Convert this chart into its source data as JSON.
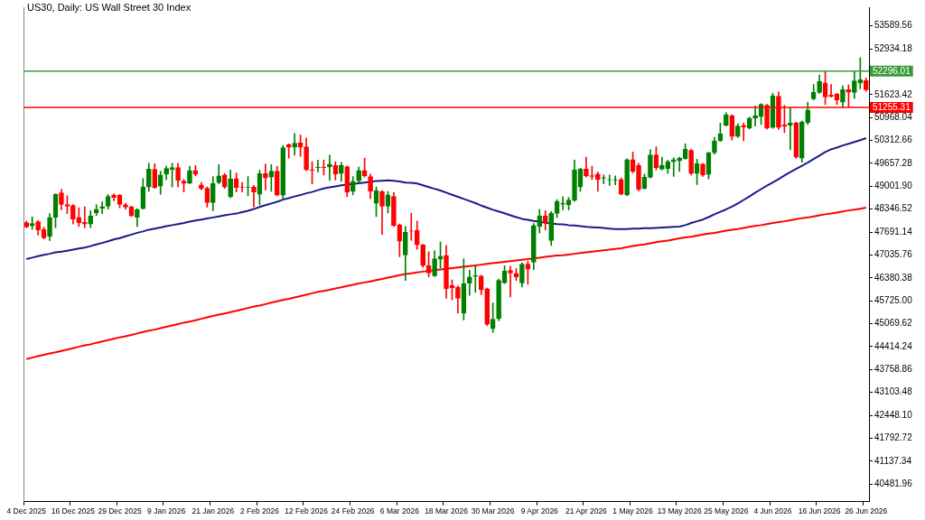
{
  "chart_data": {
    "type": "candlestick",
    "title": "US30, Daily: US Wall Street 30 Index",
    "categories": [
      "4 Dec 2025",
      null,
      null,
      null,
      null,
      null,
      null,
      null,
      "16 Dec 2025",
      null,
      null,
      null,
      null,
      null,
      null,
      null,
      "29 Dec 2025",
      null,
      null,
      null,
      null,
      null,
      null,
      null,
      "9 Jan 2026",
      null,
      null,
      null,
      null,
      null,
      null,
      null,
      "21 Jan 2026",
      null,
      null,
      null,
      null,
      null,
      null,
      null,
      "2 Feb 2026",
      null,
      null,
      null,
      null,
      null,
      null,
      null,
      "12 Feb 2026",
      null,
      null,
      null,
      null,
      null,
      null,
      null,
      "24 Feb 2026",
      null,
      null,
      null,
      null,
      null,
      null,
      null,
      "6 Mar 2026",
      null,
      null,
      null,
      null,
      null,
      null,
      null,
      "18 Mar 2026",
      null,
      null,
      null,
      null,
      null,
      null,
      null,
      "30 Mar 2026",
      null,
      null,
      null,
      null,
      null,
      null,
      null,
      "9 Apr 2026",
      null,
      null,
      null,
      null,
      null,
      null,
      null,
      "21 Apr 2026",
      null,
      null,
      null,
      null,
      null,
      null,
      null,
      "1 May 2026",
      null,
      null,
      null,
      null,
      null,
      null,
      null,
      "13 May 2026",
      null,
      null,
      null,
      null,
      null,
      null,
      null,
      "25 May 2026",
      null,
      null,
      null,
      null,
      null,
      null,
      null,
      "4 Jun 2026",
      null,
      null,
      null,
      null,
      null,
      null,
      null,
      "16 Jun 2026",
      null,
      null,
      null,
      null,
      null,
      null,
      null,
      "26 Jun 2026"
    ],
    "ohlc": [
      [
        47963,
        48006,
        47819,
        47836
      ],
      [
        47870,
        48125,
        47768,
        47938
      ],
      [
        47989,
        48023,
        47606,
        47751
      ],
      [
        47768,
        47835,
        47496,
        47530
      ],
      [
        47564,
        48218,
        47453,
        48108
      ],
      [
        48108,
        48788,
        47819,
        48771
      ],
      [
        48813,
        48915,
        48329,
        48482
      ],
      [
        48482,
        48728,
        48218,
        48431
      ],
      [
        48456,
        48482,
        47921,
        48065
      ],
      [
        48108,
        48388,
        47853,
        47963
      ],
      [
        47972,
        48414,
        47819,
        47921
      ],
      [
        47921,
        48303,
        47819,
        48159
      ],
      [
        48244,
        48473,
        48159,
        48346
      ],
      [
        48371,
        48558,
        48218,
        48422
      ],
      [
        48431,
        48771,
        48346,
        48711
      ],
      [
        48745,
        48788,
        48584,
        48686
      ],
      [
        48745,
        48771,
        48388,
        48482
      ],
      [
        48473,
        48516,
        48346,
        48405
      ],
      [
        48405,
        48431,
        48133,
        48159
      ],
      [
        48116,
        48371,
        47853,
        48329
      ],
      [
        48363,
        49221,
        48346,
        48983
      ],
      [
        48983,
        49663,
        48856,
        49493
      ],
      [
        49485,
        49646,
        48941,
        48958
      ],
      [
        49009,
        49434,
        48771,
        49323
      ],
      [
        49349,
        49578,
        49196,
        49510
      ],
      [
        49485,
        49663,
        48983,
        49536
      ],
      [
        49536,
        49663,
        48983,
        49170
      ],
      [
        49153,
        49196,
        48839,
        49085
      ],
      [
        49094,
        49578,
        49068,
        49451
      ],
      [
        49451,
        49595,
        49298,
        49349
      ],
      [
        49043,
        49111,
        48898,
        48941
      ],
      [
        48941,
        48983,
        48405,
        48533
      ],
      [
        48533,
        49281,
        48303,
        49085
      ],
      [
        49111,
        49621,
        49068,
        49298
      ],
      [
        49323,
        49366,
        48941,
        48983
      ],
      [
        48703,
        49468,
        48669,
        49213
      ],
      [
        49221,
        49383,
        48839,
        48966
      ],
      [
        48983,
        49111,
        48839,
        48975
      ],
      [
        48975,
        49281,
        48728,
        48983
      ],
      [
        48983,
        49026,
        48414,
        48839
      ],
      [
        48771,
        49468,
        48473,
        49366
      ],
      [
        49366,
        49638,
        48898,
        49238
      ],
      [
        49264,
        49621,
        48856,
        49434
      ],
      [
        49434,
        49578,
        48728,
        48745
      ],
      [
        48745,
        50173,
        48643,
        50105
      ],
      [
        50199,
        50216,
        49808,
        50114
      ],
      [
        50114,
        50513,
        49893,
        50233
      ],
      [
        50241,
        50471,
        49859,
        50114
      ],
      [
        50131,
        50386,
        49451,
        49468
      ],
      [
        49476,
        49706,
        49068,
        49459
      ],
      [
        49536,
        49748,
        49408,
        49553
      ],
      [
        49553,
        49748,
        49323,
        49536
      ],
      [
        49553,
        49893,
        49170,
        49638
      ],
      [
        49604,
        49706,
        49179,
        49349
      ],
      [
        49366,
        49689,
        49145,
        49604
      ],
      [
        49561,
        49578,
        48703,
        48830
      ],
      [
        48856,
        49281,
        48754,
        49145
      ],
      [
        49153,
        49553,
        49094,
        49451
      ],
      [
        49451,
        49808,
        49264,
        49306
      ],
      [
        49281,
        49349,
        48643,
        48856
      ],
      [
        48516,
        48983,
        48133,
        48873
      ],
      [
        48856,
        48881,
        47623,
        48431
      ],
      [
        48431,
        48856,
        48235,
        48754
      ],
      [
        48711,
        48830,
        47853,
        47878
      ],
      [
        47895,
        47921,
        46986,
        47428
      ],
      [
        47037,
        47853,
        46306,
        47683
      ],
      [
        47725,
        48235,
        47453,
        47717
      ],
      [
        47734,
        48005,
        47198,
        47326
      ],
      [
        47326,
        47343,
        46688,
        46731
      ],
      [
        46731,
        47130,
        46408,
        46518
      ],
      [
        46442,
        47156,
        46416,
        46926
      ],
      [
        46918,
        47411,
        46663,
        47003
      ],
      [
        47028,
        47309,
        45796,
        46076
      ],
      [
        46161,
        46323,
        45753,
        46093
      ],
      [
        46110,
        46152,
        45371,
        45796
      ],
      [
        45371,
        46926,
        45175,
        46221
      ],
      [
        46221,
        46603,
        45881,
        46408
      ],
      [
        46425,
        46731,
        45966,
        46450
      ],
      [
        46433,
        46459,
        45898,
        46034
      ],
      [
        46068,
        46093,
        45014,
        45056
      ],
      [
        44929,
        45668,
        44818,
        45201
      ],
      [
        45218,
        46348,
        45158,
        46306
      ],
      [
        46238,
        46731,
        46221,
        46578
      ],
      [
        46595,
        46714,
        45838,
        46518
      ],
      [
        46510,
        46646,
        46306,
        46408
      ],
      [
        46238,
        46816,
        46119,
        46773
      ],
      [
        46773,
        46858,
        46195,
        46629
      ],
      [
        46833,
        47938,
        46620,
        47878
      ],
      [
        47853,
        48346,
        47666,
        48159
      ],
      [
        48159,
        48303,
        47751,
        47946
      ],
      [
        47453,
        48278,
        47309,
        48235
      ],
      [
        48227,
        48618,
        48108,
        48567
      ],
      [
        48490,
        48703,
        48329,
        48516
      ],
      [
        48473,
        48686,
        48320,
        48609
      ],
      [
        48601,
        49748,
        48575,
        49468
      ],
      [
        48983,
        49519,
        48856,
        49493
      ],
      [
        49493,
        49833,
        49264,
        49298
      ],
      [
        49306,
        49578,
        49196,
        49281
      ],
      [
        49349,
        49408,
        48856,
        49196
      ],
      [
        49230,
        49323,
        49068,
        49247
      ],
      [
        49187,
        49323,
        49026,
        49196
      ],
      [
        49179,
        49298,
        49043,
        49187
      ],
      [
        49196,
        49238,
        48754,
        48771
      ],
      [
        48754,
        49791,
        48728,
        49765
      ],
      [
        49765,
        49986,
        49383,
        49425
      ],
      [
        49595,
        49663,
        48873,
        48915
      ],
      [
        48941,
        49349,
        48924,
        49264
      ],
      [
        49255,
        50046,
        49238,
        49901
      ],
      [
        49901,
        50131,
        49468,
        49536
      ],
      [
        49493,
        49833,
        49468,
        49604
      ],
      [
        49510,
        49748,
        49366,
        49706
      ],
      [
        49706,
        49816,
        49281,
        49765
      ],
      [
        49731,
        49833,
        49425,
        49808
      ],
      [
        49791,
        50216,
        49774,
        50063
      ],
      [
        50029,
        50063,
        49323,
        49366
      ],
      [
        49366,
        49774,
        49051,
        49655
      ],
      [
        49638,
        49663,
        49281,
        49323
      ],
      [
        49340,
        49978,
        49213,
        49961
      ],
      [
        49961,
        50403,
        49918,
        50301
      ],
      [
        50301,
        50811,
        50284,
        50505
      ],
      [
        50751,
        51108,
        50726,
        51040
      ],
      [
        51023,
        51049,
        50326,
        50428
      ],
      [
        50428,
        50794,
        50403,
        50726
      ],
      [
        50743,
        50811,
        50301,
        50692
      ],
      [
        50666,
        50981,
        50641,
        50955
      ],
      [
        50955,
        51304,
        50726,
        51023
      ],
      [
        50998,
        51363,
        50768,
        51346
      ],
      [
        51321,
        51346,
        50641,
        50666
      ],
      [
        50683,
        51661,
        50658,
        51593
      ],
      [
        51576,
        51703,
        50624,
        50683
      ],
      [
        50768,
        51321,
        50539,
        50717
      ],
      [
        50751,
        51253,
        50046,
        50811
      ],
      [
        50811,
        50836,
        49808,
        49833
      ],
      [
        49808,
        50870,
        49689,
        50836
      ],
      [
        50828,
        51406,
        50768,
        51185
      ],
      [
        51508,
        51916,
        51474,
        51686
      ],
      [
        51686,
        52188,
        51661,
        52001
      ],
      [
        51958,
        52281,
        51346,
        51559
      ],
      [
        51610,
        51916,
        51550,
        51576
      ],
      [
        51635,
        51661,
        51346,
        51465
      ],
      [
        51406,
        51873,
        51261,
        51763
      ],
      [
        51763,
        51899,
        51261,
        51695
      ],
      [
        51686,
        52290,
        51516,
        52018
      ],
      [
        51958,
        52681,
        51788,
        52052
      ],
      [
        52026,
        52103,
        51720,
        51763
      ]
    ],
    "colors": [
      "#ff0000",
      "#008000",
      "#ff0000",
      "#ff0000",
      "#008000",
      "#008000",
      "#ff0000",
      "#ff0000",
      "#ff0000",
      "#ff0000",
      "#ff0000",
      "#008000",
      "#008000",
      "#008000",
      "#008000",
      "#ff0000",
      "#ff0000",
      "#ff0000",
      "#ff0000",
      "#008000",
      "#008000",
      "#008000",
      "#ff0000",
      "#008000",
      "#008000",
      "#008000",
      "#ff0000",
      "#ff0000",
      "#008000",
      "#ff0000",
      "#ff0000",
      "#ff0000",
      "#008000",
      "#008000",
      "#ff0000",
      "#008000",
      "#ff0000",
      "#ff0000",
      "#008000",
      "#ff0000",
      "#008000",
      "#ff0000",
      "#008000",
      "#ff0000",
      "#008000",
      "#ff0000",
      "#008000",
      "#ff0000",
      "#ff0000",
      "#ff0000",
      "#008000",
      "#ff0000",
      "#008000",
      "#ff0000",
      "#008000",
      "#ff0000",
      "#008000",
      "#008000",
      "#ff0000",
      "#ff0000",
      "#008000",
      "#ff0000",
      "#008000",
      "#ff0000",
      "#ff0000",
      "#008000",
      "#ff0000",
      "#ff0000",
      "#ff0000",
      "#ff0000",
      "#008000",
      "#008000",
      "#ff0000",
      "#ff0000",
      "#ff0000",
      "#008000",
      "#008000",
      "#008000",
      "#ff0000",
      "#ff0000",
      "#008000",
      "#008000",
      "#008000",
      "#ff0000",
      "#ff0000",
      "#008000",
      "#ff0000",
      "#008000",
      "#008000",
      "#ff0000",
      "#008000",
      "#008000",
      "#008000",
      "#008000",
      "#008000",
      "#008000",
      "#ff0000",
      "#ff0000",
      "#ff0000",
      "#008000",
      "#008000",
      "#008000",
      "#ff0000",
      "#008000",
      "#ff0000",
      "#ff0000",
      "#008000",
      "#008000",
      "#ff0000",
      "#008000",
      "#008000",
      "#008000",
      "#008000",
      "#008000",
      "#ff0000",
      "#008000",
      "#ff0000",
      "#008000",
      "#008000",
      "#008000",
      "#008000",
      "#ff0000",
      "#008000",
      "#ff0000",
      "#008000",
      "#008000",
      "#008000",
      "#ff0000",
      "#008000",
      "#ff0000",
      "#ff0000",
      "#008000",
      "#ff0000",
      "#008000",
      "#008000",
      "#008000",
      "#008000",
      "#ff0000",
      "#ff0000",
      "#ff0000",
      "#008000",
      "#ff0000",
      "#008000",
      "#008000",
      "#ff0000"
    ],
    "series": [
      {
        "type": "line",
        "color": "#1a1a8a",
        "values": [
          46920,
          46960,
          47000,
          47040,
          47070,
          47110,
          47130,
          47160,
          47190,
          47220,
          47250,
          47290,
          47340,
          47380,
          47430,
          47480,
          47520,
          47570,
          47620,
          47670,
          47710,
          47760,
          47790,
          47820,
          47860,
          47890,
          47920,
          47950,
          47990,
          48020,
          48050,
          48080,
          48110,
          48140,
          48170,
          48200,
          48220,
          48260,
          48300,
          48350,
          48410,
          48460,
          48510,
          48560,
          48620,
          48660,
          48710,
          48750,
          48800,
          48840,
          48890,
          48940,
          48970,
          49000,
          49030,
          49050,
          49070,
          49090,
          49110,
          49130,
          49150,
          49160,
          49170,
          49160,
          49140,
          49110,
          49100,
          49080,
          49030,
          48980,
          48930,
          48880,
          48820,
          48760,
          48700,
          48640,
          48580,
          48520,
          48450,
          48390,
          48330,
          48280,
          48230,
          48170,
          48120,
          48070,
          48040,
          48010,
          47990,
          47960,
          47940,
          47920,
          47910,
          47890,
          47880,
          47860,
          47840,
          47830,
          47820,
          47810,
          47790,
          47780,
          47780,
          47780,
          47790,
          47790,
          47800,
          47800,
          47810,
          47820,
          47830,
          47840,
          47850,
          47890,
          47950,
          48000,
          48050,
          48120,
          48200,
          48270,
          48340,
          48420,
          48510,
          48610,
          48710,
          48820,
          48920,
          49020,
          49110,
          49210,
          49310,
          49410,
          49500,
          49590,
          49680,
          49780,
          49880,
          49980,
          50060,
          50110,
          50170,
          50220,
          50270,
          50320,
          50380
        ]
      },
      {
        "type": "line",
        "color": "#ff0000",
        "values": [
          44060,
          44100,
          44140,
          44180,
          44220,
          44250,
          44290,
          44330,
          44370,
          44410,
          44450,
          44480,
          44520,
          44560,
          44600,
          44640,
          44680,
          44710,
          44750,
          44790,
          44830,
          44870,
          44900,
          44940,
          44980,
          45020,
          45060,
          45100,
          45130,
          45170,
          45210,
          45250,
          45290,
          45330,
          45360,
          45400,
          45440,
          45480,
          45520,
          45560,
          45590,
          45630,
          45670,
          45710,
          45750,
          45780,
          45820,
          45860,
          45900,
          45940,
          45980,
          46010,
          46040,
          46080,
          46110,
          46150,
          46180,
          46220,
          46250,
          46280,
          46320,
          46350,
          46390,
          46420,
          46460,
          46490,
          46510,
          46540,
          46560,
          46580,
          46600,
          46620,
          46640,
          46660,
          46680,
          46700,
          46720,
          46740,
          46760,
          46780,
          46800,
          46820,
          46840,
          46860,
          46880,
          46900,
          46920,
          46940,
          46960,
          46980,
          47000,
          47020,
          47030,
          47050,
          47070,
          47090,
          47110,
          47130,
          47150,
          47170,
          47190,
          47210,
          47230,
          47260,
          47290,
          47320,
          47340,
          47370,
          47400,
          47430,
          47450,
          47480,
          47510,
          47540,
          47560,
          47590,
          47620,
          47650,
          47670,
          47700,
          47730,
          47760,
          47780,
          47810,
          47840,
          47870,
          47890,
          47920,
          47950,
          47980,
          48000,
          48030,
          48060,
          48090,
          48110,
          48140,
          48170,
          48200,
          48220,
          48250,
          48280,
          48310,
          48330,
          48360,
          48390
        ]
      }
    ],
    "ref_lines": [
      {
        "axis": "y",
        "value": 52296.01,
        "label": "52296.01",
        "color": "#3a9a3a"
      },
      {
        "axis": "y",
        "value": 51255.31,
        "label": "51255.31",
        "color": "#ff0000"
      }
    ],
    "ylim": [
      39975,
      54125
    ],
    "yticks": [
      53589.56,
      52934.18,
      51623.42,
      50968.04,
      50312.66,
      49657.28,
      {
        "value": 49001.9,
        "label": "49001.90"
      },
      48346.52,
      47691.14,
      47035.76,
      46380.38,
      {
        "value": 45725,
        "label": "45725.00"
      },
      45069.62,
      44414.24,
      43758.86,
      43103.48,
      {
        "value": 42448.1,
        "label": "42448.10"
      },
      41792.72,
      41137.34,
      40481.96
    ],
    "grid": false,
    "legend": false,
    "marker": "none"
  }
}
